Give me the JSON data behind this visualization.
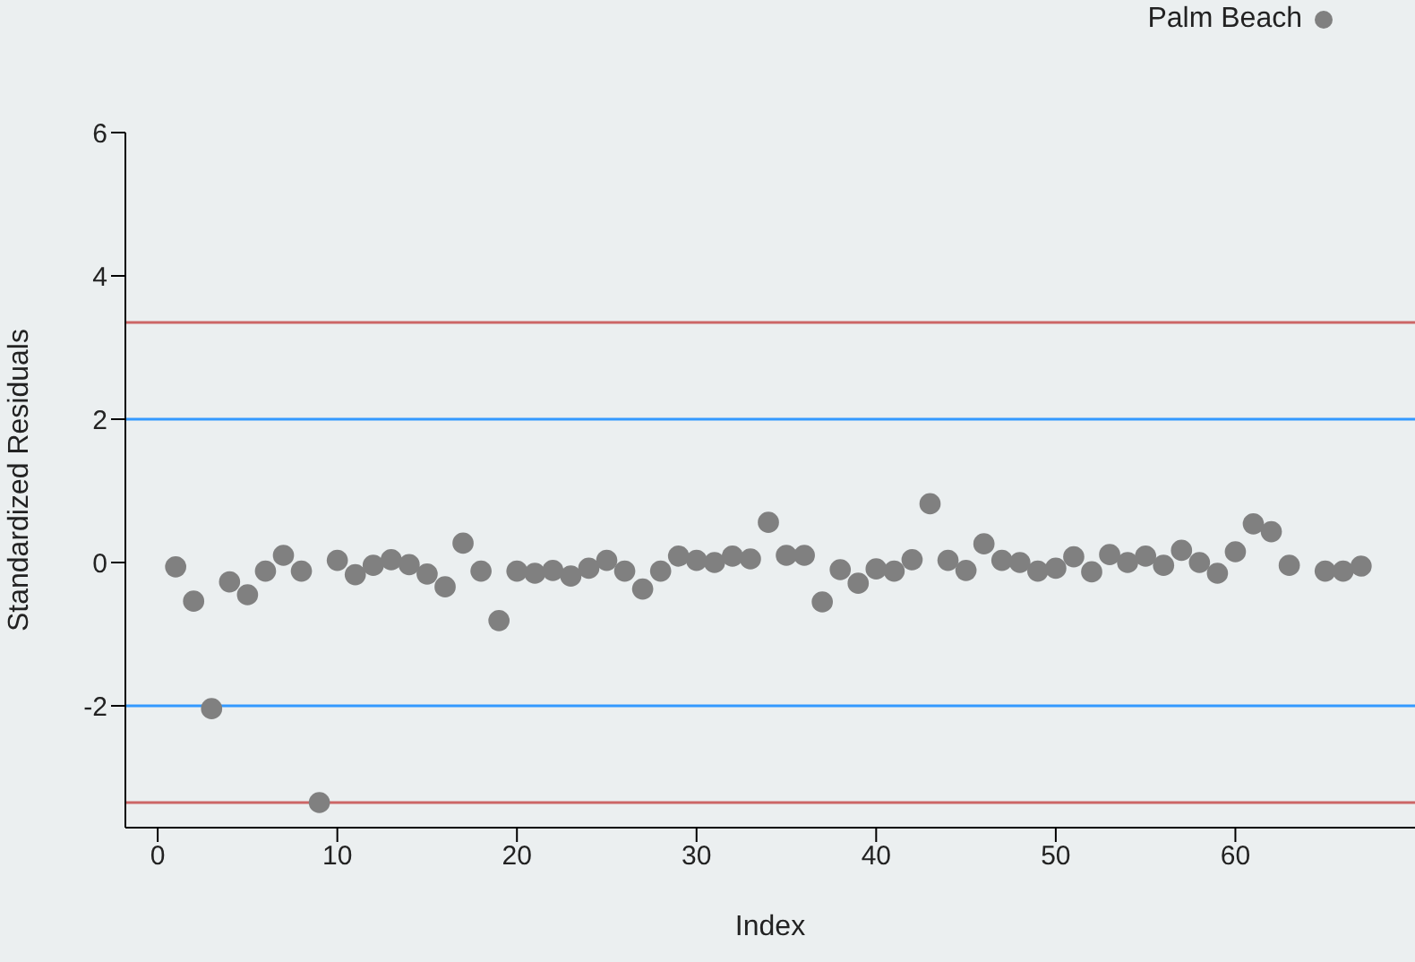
{
  "chart_data": {
    "type": "scatter",
    "xlabel": "Index",
    "ylabel": "Standardized Residuals",
    "x": [
      1,
      2,
      3,
      4,
      5,
      6,
      7,
      8,
      9,
      10,
      11,
      12,
      13,
      14,
      15,
      16,
      17,
      18,
      19,
      20,
      21,
      22,
      23,
      24,
      25,
      26,
      27,
      28,
      29,
      30,
      31,
      32,
      33,
      34,
      35,
      36,
      37,
      38,
      39,
      40,
      41,
      42,
      43,
      44,
      45,
      46,
      47,
      48,
      49,
      50,
      51,
      52,
      53,
      54,
      55,
      56,
      57,
      58,
      59,
      60,
      61,
      62,
      63,
      64,
      65,
      66,
      67
    ],
    "series": [
      {
        "name": "Palm Beach",
        "color": "#808080",
        "values": [
          -0.06,
          -0.54,
          -2.04,
          -0.27,
          -0.45,
          -0.12,
          0.1,
          -0.12,
          -3.35,
          0.03,
          -0.17,
          -0.04,
          0.04,
          -0.03,
          -0.16,
          -0.34,
          0.27,
          -0.12,
          -0.81,
          -0.12,
          -0.15,
          -0.11,
          -0.19,
          -0.08,
          0.03,
          -0.12,
          -0.37,
          -0.12,
          0.09,
          0.03,
          0,
          0.09,
          0.05,
          0.56,
          0.1,
          0.1,
          -0.55,
          -0.1,
          -0.29,
          -0.09,
          -0.12,
          0.04,
          0.82,
          0.03,
          -0.11,
          0.26,
          0.03,
          0,
          -0.12,
          -0.08,
          0.08,
          -0.13,
          0.11,
          0,
          0.09,
          -0.04,
          0.17,
          0,
          -0.15,
          0.15,
          0.54,
          0.43,
          -0.04,
          null,
          -0.12,
          -0.12,
          -0.05
        ]
      }
    ],
    "xlim": [
      -1.8,
      70
    ],
    "xticks": [
      0,
      10,
      20,
      30,
      40,
      50,
      60
    ],
    "ylim": [
      -3.7,
      6
    ],
    "yticks": [
      -2,
      0,
      2,
      4,
      6
    ],
    "ref_lines": [
      {
        "axis": "y",
        "value": 3.35,
        "color": "#cc6666"
      },
      {
        "axis": "y",
        "value": 2,
        "color": "#3399ff"
      },
      {
        "axis": "y",
        "value": -2,
        "color": "#3399ff"
      },
      {
        "axis": "y",
        "value": -3.35,
        "color": "#cc6666"
      }
    ],
    "grid": false,
    "legend": "top right",
    "marker": "circle"
  }
}
